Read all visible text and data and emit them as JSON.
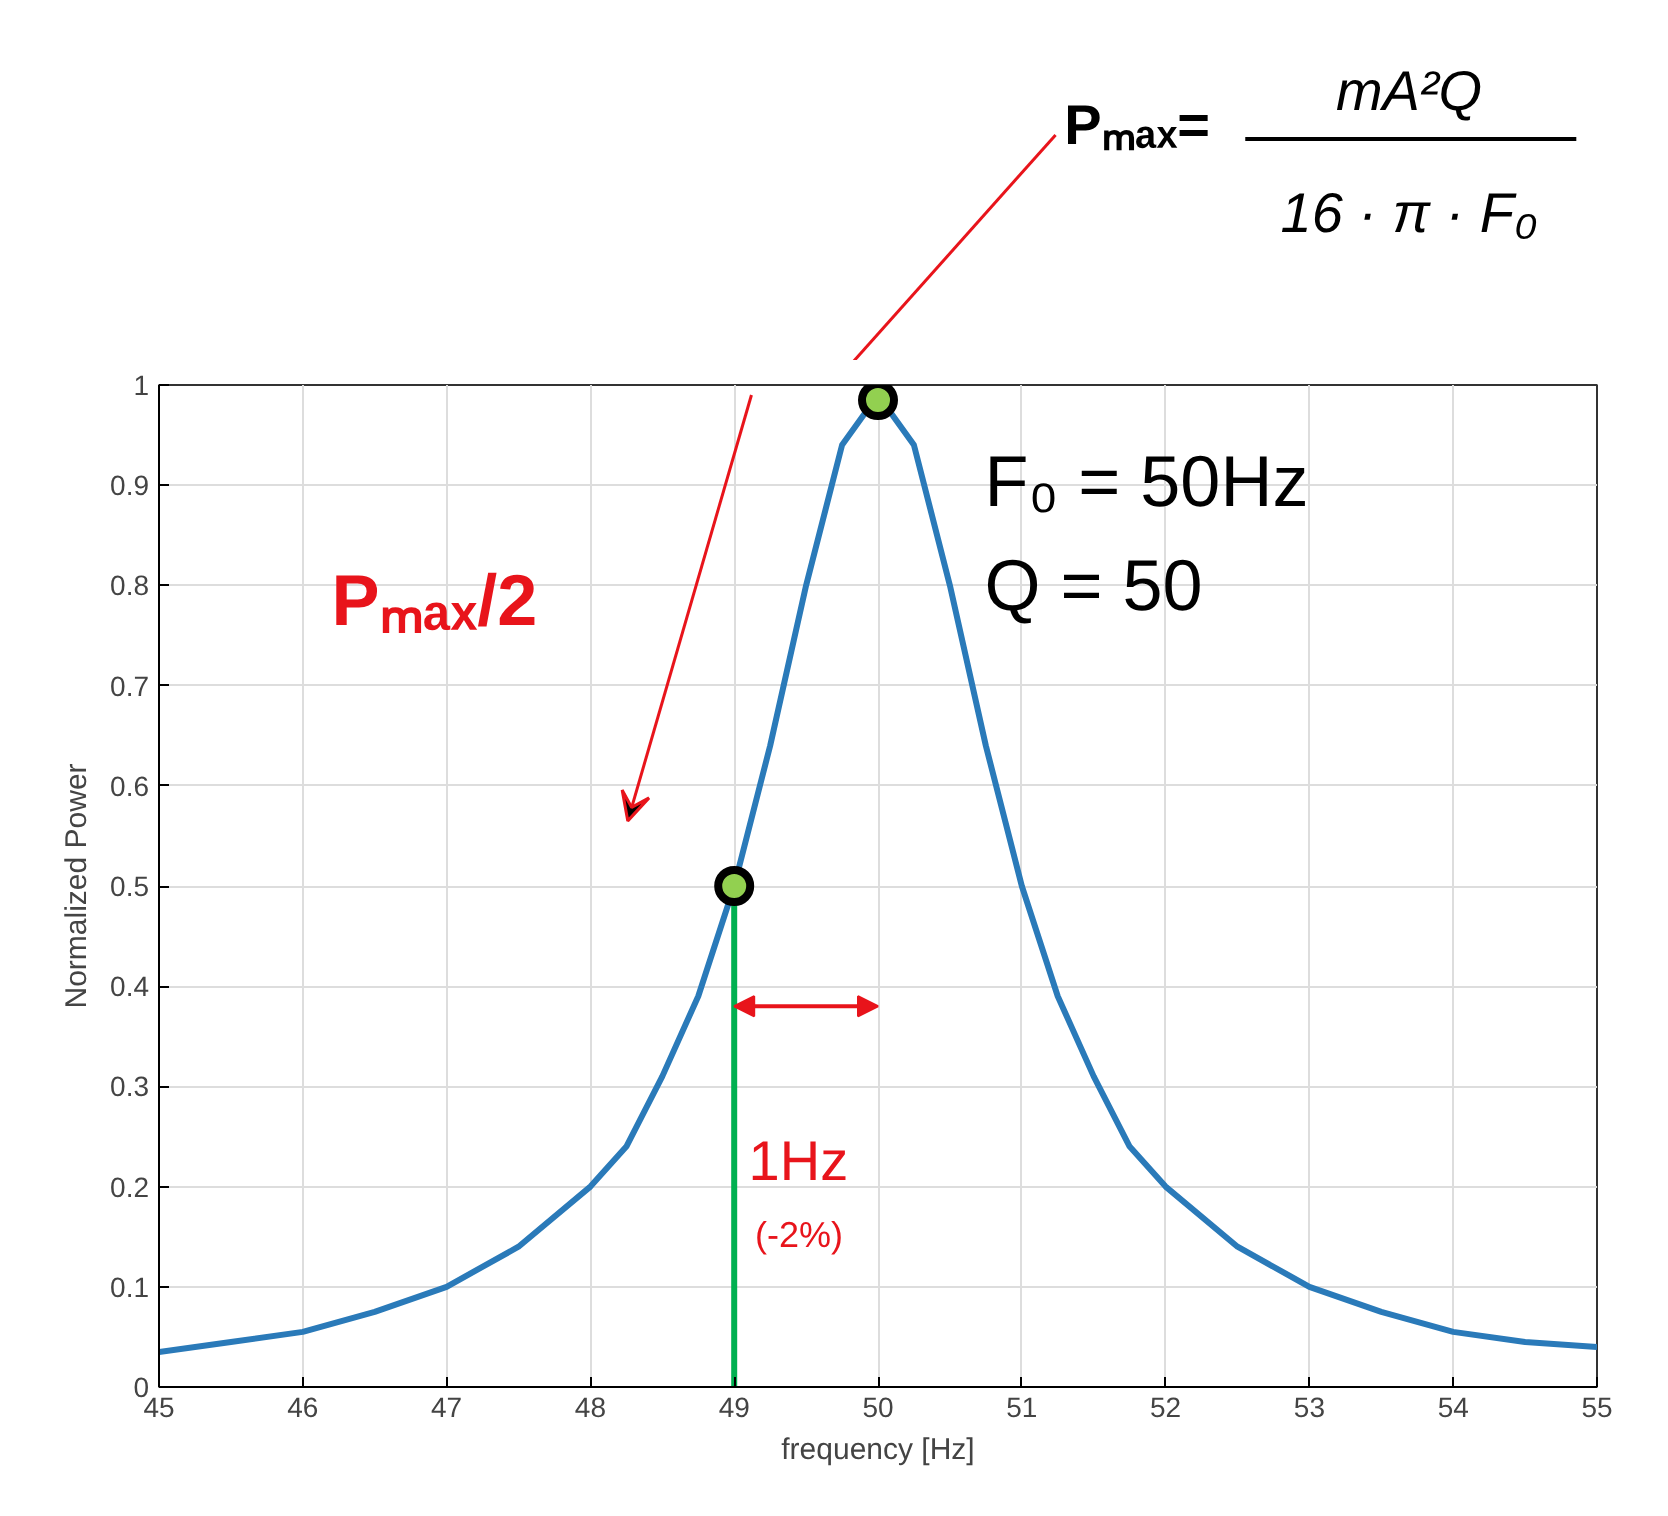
{
  "chart_data": {
    "type": "line",
    "xlabel": "frequency [Hz]",
    "ylabel": "Normalized Power",
    "xlim": [
      45,
      55
    ],
    "xticks": [
      45,
      46,
      47,
      48,
      49,
      50,
      51,
      52,
      53,
      54,
      55
    ],
    "ylim": [
      0,
      1
    ],
    "yticks": [
      0,
      0.1,
      0.2,
      0.3,
      0.4,
      0.5,
      0.6,
      0.7,
      0.8,
      0.9,
      1
    ],
    "grid": true,
    "series": [
      {
        "color": "#2a7ab9",
        "x": [
          45,
          45.5,
          46,
          46.5,
          47,
          47.5,
          48,
          48.25,
          48.5,
          48.75,
          49,
          49.25,
          49.5,
          49.75,
          50,
          50.25,
          50.5,
          50.75,
          51,
          51.25,
          51.5,
          51.75,
          52,
          52.5,
          53,
          53.5,
          54,
          54.5,
          55
        ],
        "values": [
          0.035,
          0.045,
          0.055,
          0.075,
          0.1,
          0.14,
          0.2,
          0.24,
          0.31,
          0.39,
          0.5,
          0.64,
          0.8,
          0.94,
          0.99,
          0.94,
          0.8,
          0.64,
          0.5,
          0.39,
          0.31,
          0.24,
          0.2,
          0.14,
          0.1,
          0.075,
          0.055,
          0.045,
          0.04
        ]
      },
      {
        "color": "#00b050",
        "x": [
          49,
          49
        ],
        "values": [
          0,
          0.5
        ]
      },
      {
        "type": "scatter",
        "color": "#92d050",
        "marker": "circle",
        "x": [
          49,
          50
        ],
        "values": [
          0.5,
          0.985
        ]
      }
    ],
    "annotations": [
      "Pₘₐₓ=",
      "mA²Q",
      "16 · π · F₀",
      "F₀ = 50Hz",
      "Q = 50",
      "Pₘₐₓ/2",
      "1Hz",
      "(-2%)"
    ]
  }
}
